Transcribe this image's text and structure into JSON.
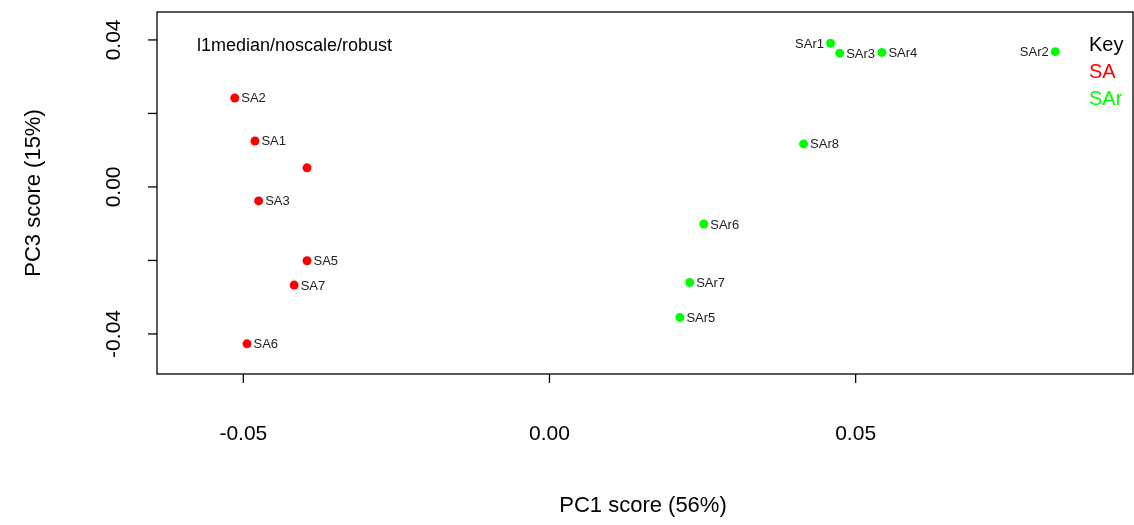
{
  "chart_data": {
    "type": "scatter",
    "title": "l1median/noscale/robust",
    "xlabel": "PC1 score (56%)",
    "ylabel": "PC3 score (15%)",
    "legend_title": "Key",
    "legend": "top right",
    "marker": "circle",
    "xlim": [
      -0.0641,
      0.0953
    ],
    "ylim": [
      -0.0509,
      0.0476
    ],
    "xticks": [
      {
        "value": -0.05,
        "label": "-0.05"
      },
      {
        "value": 0,
        "label": "0.00"
      },
      {
        "value": 0.05,
        "label": "0.05"
      }
    ],
    "yticks": [
      {
        "value": -0.04,
        "label": "-0.04"
      },
      {
        "value": -0.02,
        "label": null
      },
      {
        "value": 0,
        "label": "0.00"
      },
      {
        "value": 0.02,
        "label": null
      },
      {
        "value": 0.04,
        "label": "0.04"
      }
    ],
    "series": [
      {
        "name": "SA",
        "color": "#ff0000",
        "x": [
          -0.0481,
          -0.0514,
          -0.0475,
          -0.0396,
          -0.0396,
          -0.0494,
          -0.0417
        ],
        "values": [
          0.0125,
          0.0242,
          -0.0038,
          0.0052,
          -0.0201,
          -0.0427,
          -0.0267
        ]
      },
      {
        "name": "SAr",
        "color": "#00ff00",
        "x": [
          0.0459,
          0.0826,
          0.0474,
          0.0543,
          0.0213,
          0.0252,
          0.0229,
          0.0415
        ],
        "values": [
          0.0391,
          0.0368,
          0.0364,
          0.0366,
          -0.0355,
          -0.0101,
          -0.026,
          0.0117
        ]
      }
    ],
    "annotations": [
      {
        "text": "SA1",
        "x": -0.0481,
        "y": 0.0125
      },
      {
        "text": "SA2",
        "x": -0.0514,
        "y": 0.0242
      },
      {
        "text": "SA3",
        "x": -0.0475,
        "y": -0.0038
      },
      {
        "text": "SA5",
        "x": -0.0396,
        "y": -0.0201
      },
      {
        "text": "SA6",
        "x": -0.0494,
        "y": -0.0427
      },
      {
        "text": "SA7",
        "x": -0.0417,
        "y": -0.0267
      },
      {
        "text": "SAr1",
        "x": 0.0459,
        "y": 0.0391
      },
      {
        "text": "SAr2",
        "x": 0.0826,
        "y": 0.0368
      },
      {
        "text": "SAr3",
        "x": 0.0474,
        "y": 0.0364
      },
      {
        "text": "SAr4",
        "x": 0.0543,
        "y": 0.0366
      },
      {
        "text": "SAr5",
        "x": 0.0213,
        "y": -0.0355
      },
      {
        "text": "SAr6",
        "x": 0.0252,
        "y": -0.0101
      },
      {
        "text": "SAr7",
        "x": 0.0229,
        "y": -0.026
      },
      {
        "text": "SAr8",
        "x": 0.0415,
        "y": 0.0117
      }
    ]
  }
}
